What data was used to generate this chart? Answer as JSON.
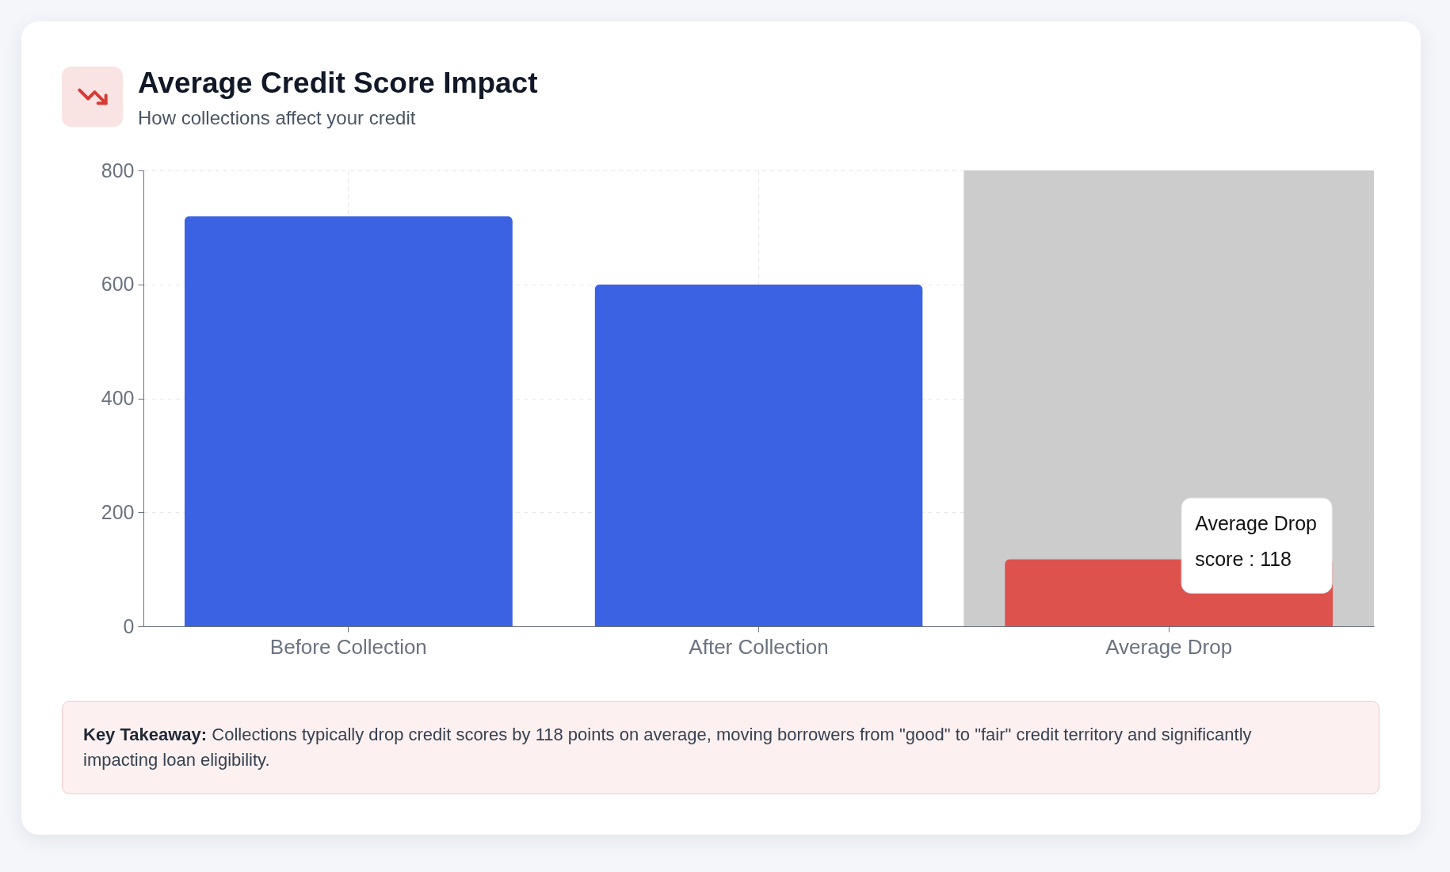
{
  "chart_data": {
    "type": "bar",
    "title": "Average Credit Score Impact",
    "subtitle": "How collections affect your credit",
    "categories": [
      "Before Collection",
      "After Collection",
      "Average Drop"
    ],
    "values": [
      720,
      600,
      118
    ],
    "colors": [
      "#3a62e2",
      "#3a62e2",
      "#de524d"
    ],
    "ylim": [
      0,
      800
    ],
    "yticks": [
      0,
      200,
      400,
      600,
      800
    ],
    "grid": true,
    "bands": [
      {
        "axis": "x",
        "from": "Average Drop",
        "to": "Average Drop",
        "color": "#cccccc"
      }
    ],
    "annotations": [
      {
        "text": "Average Drop\nscore : 118",
        "x": "Average Drop",
        "y": 118
      },
      "Key Takeaway: Collections typically drop credit scores by 118 points on average, moving borrowers from \"good\" to \"fair\" credit territory and significantly impacting loan eligibility."
    ]
  }
}
